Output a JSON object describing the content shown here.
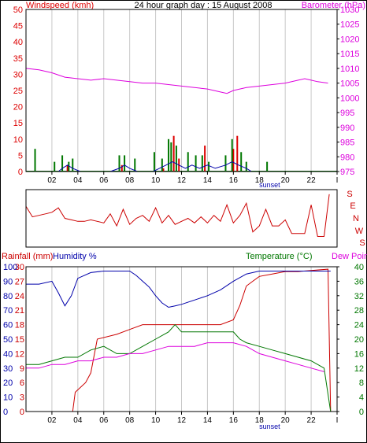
{
  "colors": {
    "red": "#dd0000",
    "magenta": "#dd00dd",
    "green": "#007700",
    "blue": "#0000aa",
    "dark_red": "#cc0000",
    "grid": "#c8c8c8",
    "frame": "#000000"
  },
  "header": {
    "left_label": "Windspeed (kmh)",
    "title": "24 hour graph day : 15 August 2008",
    "right_label": "Barometer (hPa)"
  },
  "x_axis": {
    "ticks": [
      "02",
      "04",
      "06",
      "08",
      "10",
      "12",
      "14",
      "16",
      "18",
      "20",
      "22",
      "I"
    ],
    "marker_label": "sunset"
  },
  "panel_direction": {
    "labels": [
      "S",
      "E",
      "N",
      "W",
      "S"
    ]
  },
  "panel_bottom": {
    "left_label_1": "Rainfall (mm)",
    "left_label_2": "Humidity %",
    "right_label_1": "Temperature (°C)",
    "right_label_2": "Dew Point"
  },
  "chart_data": [
    {
      "type": "line",
      "title": "24 hour graph day : 15 August 2008",
      "panel": "wind-barometer",
      "x_unit": "hour",
      "ylabel": "Windspeed (kmh)",
      "ylim": [
        0,
        50
      ],
      "yticks": [
        0,
        5,
        10,
        15,
        20,
        25,
        30,
        35,
        40,
        45,
        50
      ],
      "y2label": "Barometer (hPa)",
      "y2lim": [
        975,
        1030
      ],
      "y2ticks": [
        975,
        980,
        985,
        990,
        995,
        1000,
        1005,
        1010,
        1015,
        1020,
        1025,
        1030
      ],
      "series": [
        {
          "name": "Barometer (hPa)",
          "axis": "right",
          "color": "#dd00dd",
          "x": [
            0,
            1,
            2,
            3,
            4,
            5,
            6,
            7,
            8,
            9,
            10,
            11,
            12,
            13,
            14,
            15,
            15.5,
            16,
            17,
            18,
            19,
            20,
            21,
            21.5,
            22,
            22.5,
            23.3
          ],
          "y": [
            1010,
            1009.5,
            1008.5,
            1007,
            1006.5,
            1006,
            1006.5,
            1006,
            1005.5,
            1005,
            1005,
            1004.5,
            1004,
            1003.5,
            1003,
            1002,
            1001.5,
            1002.5,
            1003.5,
            1004,
            1004.5,
            1005,
            1006,
            1006.5,
            1006,
            1005.5,
            1005
          ]
        },
        {
          "name": "Gust (kmh)",
          "axis": "left",
          "color": "#dd0000",
          "style": "bars",
          "x": [
            3.2,
            7.4,
            10.6,
            11.4,
            11.8,
            13.8,
            16.0,
            16.3
          ],
          "y": [
            2,
            2,
            1,
            11,
            4,
            8,
            7,
            11
          ]
        },
        {
          "name": "Windspeed (kmh)",
          "axis": "left",
          "color": "#007700",
          "style": "bars",
          "x": [
            0.7,
            2.2,
            2.8,
            3.3,
            3.6,
            7.2,
            7.6,
            8.4,
            9.9,
            10.5,
            11.0,
            11.2,
            11.6,
            12.5,
            13.1,
            13.6,
            14.1,
            15.4,
            15.9,
            16.6,
            17.0,
            18.6
          ],
          "y": [
            7,
            3,
            5,
            3,
            4,
            5,
            5,
            4,
            6,
            4,
            10,
            9,
            8,
            6,
            5,
            5,
            3,
            5,
            10,
            6,
            3,
            3
          ]
        },
        {
          "name": "Average wind (kmh)",
          "axis": "left",
          "color": "#0000aa",
          "x": [
            0,
            2.5,
            2.8,
            3.2,
            3.6,
            4.2,
            6.5,
            7.2,
            7.6,
            8.0,
            8.6,
            9.8,
            10.3,
            10.8,
            11.3,
            11.8,
            12.3,
            12.8,
            13.4,
            14.0,
            14.6,
            15.4,
            15.9,
            16.4,
            17.0,
            17.4,
            19,
            23.5
          ],
          "y": [
            0,
            0,
            1,
            2,
            1,
            0,
            0,
            1,
            2,
            1,
            0,
            0,
            1,
            2,
            3,
            2,
            1,
            2,
            1,
            2,
            1,
            2,
            3,
            2,
            1,
            0,
            0,
            0
          ]
        }
      ]
    },
    {
      "type": "line",
      "panel": "wind-direction",
      "x_unit": "hour",
      "yticks": [
        "S",
        "E",
        "N",
        "W",
        "S"
      ],
      "ylim": [
        0,
        360
      ],
      "series": [
        {
          "name": "Wind direction",
          "color": "#cc0000",
          "x": [
            0,
            0.5,
            1,
            1.5,
            2,
            2.5,
            3,
            3.5,
            4,
            4.5,
            5,
            5.5,
            6,
            6.5,
            7,
            7.5,
            8,
            8.5,
            9,
            9.5,
            10,
            10.5,
            11,
            11.5,
            12,
            12.5,
            13,
            13.5,
            14,
            14.5,
            15,
            15.5,
            16,
            16.5,
            17,
            17.5,
            18,
            18.5,
            19,
            19.5,
            20,
            20.5,
            21,
            21.5,
            22,
            22.5,
            23,
            23.4
          ],
          "y": [
            100,
            170,
            160,
            150,
            140,
            110,
            180,
            190,
            200,
            200,
            190,
            200,
            210,
            150,
            230,
            120,
            220,
            180,
            160,
            200,
            110,
            210,
            160,
            220,
            200,
            180,
            210,
            170,
            210,
            160,
            200,
            90,
            210,
            160,
            80,
            270,
            230,
            120,
            230,
            230,
            190,
            280,
            280,
            280,
            90,
            300,
            300,
            20
          ]
        }
      ]
    },
    {
      "type": "line",
      "panel": "rain-humidity-temperature",
      "x_unit": "hour",
      "ylabel": "Rainfall (mm)",
      "ylim": [
        0,
        30
      ],
      "yticks": [
        0,
        3,
        6,
        9,
        12,
        15,
        18,
        21,
        24,
        27,
        30
      ],
      "humidity_ylim": [
        0,
        100
      ],
      "humidity_yticks": [
        0,
        10,
        20,
        30,
        40,
        50,
        60,
        70,
        80,
        90,
        100
      ],
      "y2label": "Temperature (°C)",
      "y2lim": [
        0,
        40
      ],
      "y2ticks": [
        0,
        4,
        8,
        12,
        16,
        20,
        24,
        28,
        32,
        36,
        40
      ],
      "series": [
        {
          "name": "Rainfall (mm)",
          "axis": "left",
          "color": "#cc0000",
          "x": [
            0,
            3.0,
            3.6,
            3.8,
            4.6,
            5.0,
            5.5,
            7.0,
            8.0,
            9.0,
            10.0,
            11.0,
            12.0,
            13.0,
            14.0,
            15.0,
            16.0,
            16.5,
            17.0,
            17.5,
            18.0,
            19.0,
            20.0,
            21.0,
            23.3,
            23.5
          ],
          "y": [
            0,
            0,
            0,
            4,
            6,
            8,
            15,
            16,
            17,
            18,
            18,
            18,
            18,
            18,
            18,
            18,
            19,
            22,
            26,
            27,
            28,
            28.5,
            29,
            29,
            29.5,
            0
          ]
        },
        {
          "name": "Humidity %",
          "axis": "humidity",
          "color": "#0000aa",
          "x": [
            0,
            1,
            2,
            2.5,
            3,
            3.5,
            4,
            5,
            6,
            7,
            8,
            8.5,
            9,
            9.5,
            10,
            10.5,
            11,
            11.5,
            12,
            13,
            14,
            15,
            16,
            17,
            18,
            20,
            22,
            23.5
          ],
          "y": [
            88,
            88,
            90,
            82,
            73,
            80,
            92,
            96,
            97,
            97,
            97,
            94,
            90,
            86,
            80,
            75,
            72,
            73,
            74,
            77,
            80,
            84,
            90,
            95,
            97,
            97,
            97,
            97
          ]
        },
        {
          "name": "Temperature (°C)",
          "axis": "right",
          "color": "#007700",
          "x": [
            0,
            1,
            2,
            3,
            4,
            5,
            6,
            7,
            8,
            9,
            10,
            11,
            11.5,
            12,
            13,
            14,
            15,
            16,
            16.5,
            17,
            18,
            19,
            20,
            21,
            22,
            23,
            23.5
          ],
          "y": [
            13,
            13,
            14,
            15,
            15,
            17,
            18,
            16,
            16,
            18,
            20,
            22,
            24,
            22,
            22,
            22,
            22,
            22,
            20,
            19,
            18,
            17,
            16,
            15,
            14,
            12,
            0
          ]
        },
        {
          "name": "Dew Point",
          "axis": "right",
          "color": "#dd00dd",
          "x": [
            0,
            1,
            2,
            3,
            4,
            5,
            6,
            7,
            8,
            9,
            10,
            11,
            12,
            13,
            14,
            15,
            16,
            17,
            18,
            19,
            20,
            21,
            22,
            23
          ],
          "y": [
            12,
            12,
            13,
            13,
            14,
            14,
            15,
            15,
            16,
            16,
            17,
            18,
            18,
            18,
            19,
            19,
            19,
            18,
            16,
            15,
            14,
            13,
            12,
            11
          ]
        }
      ]
    }
  ]
}
